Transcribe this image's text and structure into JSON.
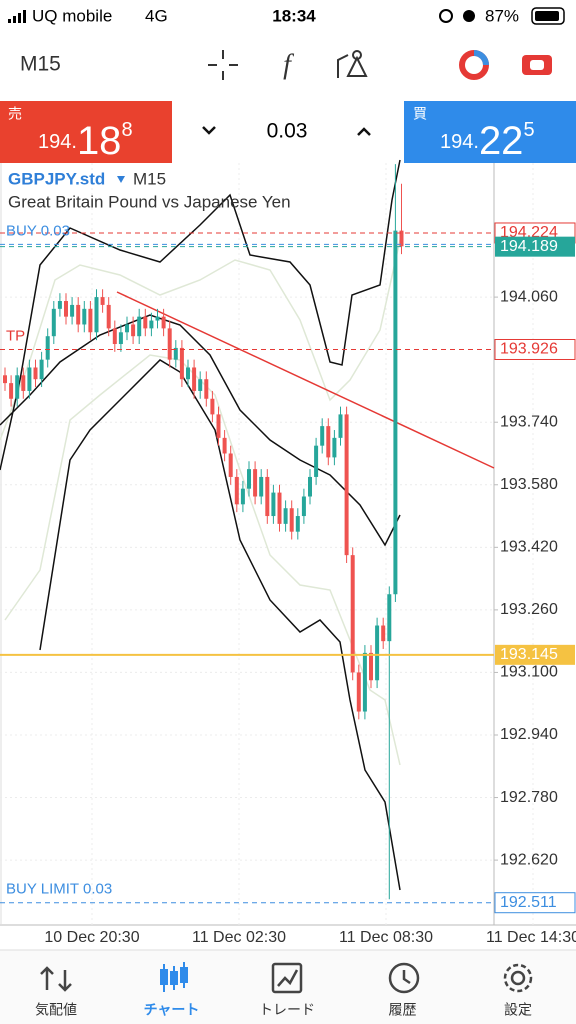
{
  "status": {
    "carrier": "UQ mobile",
    "network": "4G",
    "time": "18:34",
    "battery": "87%"
  },
  "toolbar": {
    "timeframe": "M15"
  },
  "trade": {
    "sell": {
      "label": "売",
      "prefix": "194.",
      "big": "18",
      "sup": "8"
    },
    "volume": "0.03",
    "buy": {
      "label": "買",
      "prefix": "194.",
      "big": "22",
      "sup": "5"
    }
  },
  "chart": {
    "symbol": "GBPJPY.std",
    "timeframe": "M15",
    "description": "Great Britain Pound vs Japanese Yen",
    "ylim": [
      192.454,
      194.403
    ],
    "yticks": [
      {
        "value": 194.06,
        "label": "194.060"
      },
      {
        "value": 193.74,
        "label": "193.740"
      },
      {
        "value": 193.58,
        "label": "193.580"
      },
      {
        "value": 193.42,
        "label": "193.420"
      },
      {
        "value": 193.26,
        "label": "193.260"
      },
      {
        "value": 193.1,
        "label": "193.100"
      },
      {
        "value": 192.94,
        "label": "192.940"
      },
      {
        "value": 192.78,
        "label": "192.780"
      },
      {
        "value": 192.62,
        "label": "192.620"
      }
    ],
    "xlabels": [
      "10 Dec 20:30",
      "11 Dec 02:30",
      "11 Dec 08:30",
      "11 Dec 14:30"
    ],
    "up_color": "#26a69a",
    "down_color": "#ef5350",
    "candles": {
      "open": [
        193.86,
        193.84,
        193.8,
        193.86,
        193.82,
        193.88,
        193.85,
        193.9,
        193.96,
        194.03,
        194.05,
        194.01,
        194.04,
        193.99,
        194.03,
        193.97,
        194.06,
        194.04,
        193.98,
        193.94,
        193.97,
        193.99,
        193.96,
        194.01,
        193.98,
        194.0,
        194.01,
        193.98,
        193.9,
        193.93,
        193.85,
        193.88,
        193.82,
        193.85,
        193.8,
        193.76,
        193.7,
        193.66,
        193.6,
        193.53,
        193.57,
        193.62,
        193.55,
        193.6,
        193.5,
        193.56,
        193.48,
        193.52,
        193.46,
        193.5,
        193.55,
        193.6,
        193.68,
        193.73,
        193.65,
        193.7,
        193.76,
        193.4,
        193.1,
        193.0,
        193.15,
        193.08,
        193.22,
        193.18,
        193.3,
        194.23
      ],
      "high": [
        193.88,
        193.86,
        193.88,
        193.88,
        193.9,
        193.9,
        193.92,
        193.98,
        194.05,
        194.07,
        194.07,
        194.06,
        194.06,
        194.05,
        194.05,
        194.08,
        194.08,
        194.06,
        194.0,
        193.99,
        194.01,
        194.01,
        194.03,
        194.03,
        194.02,
        194.03,
        194.03,
        194.0,
        193.95,
        193.95,
        193.9,
        193.9,
        193.87,
        193.87,
        193.82,
        193.78,
        193.72,
        193.68,
        193.62,
        193.59,
        193.64,
        193.64,
        193.62,
        193.62,
        193.58,
        193.58,
        193.54,
        193.54,
        193.52,
        193.57,
        193.62,
        193.7,
        193.75,
        193.75,
        193.72,
        193.78,
        193.78,
        193.42,
        193.12,
        193.17,
        193.17,
        193.24,
        193.24,
        193.32,
        194.4,
        194.35
      ],
      "low": [
        193.82,
        193.78,
        193.78,
        193.8,
        193.8,
        193.83,
        193.83,
        193.88,
        193.94,
        194.01,
        193.99,
        193.99,
        193.97,
        193.97,
        193.95,
        193.95,
        194.02,
        193.96,
        193.92,
        193.92,
        193.95,
        193.94,
        193.94,
        193.96,
        193.96,
        193.98,
        193.96,
        193.88,
        193.88,
        193.83,
        193.83,
        193.8,
        193.8,
        193.78,
        193.74,
        193.68,
        193.64,
        193.58,
        193.51,
        193.51,
        193.55,
        193.53,
        193.53,
        193.48,
        193.48,
        193.46,
        193.46,
        193.44,
        193.44,
        193.48,
        193.53,
        193.58,
        193.66,
        193.63,
        193.63,
        193.68,
        193.38,
        193.08,
        192.98,
        192.98,
        193.06,
        193.06,
        193.16,
        192.52,
        193.28,
        194.17
      ],
      "close": [
        193.84,
        193.8,
        193.86,
        193.82,
        193.88,
        193.85,
        193.9,
        193.96,
        194.03,
        194.05,
        194.01,
        194.04,
        193.99,
        194.03,
        193.97,
        194.06,
        194.04,
        193.98,
        193.94,
        193.97,
        193.99,
        193.96,
        194.01,
        193.98,
        194.0,
        194.01,
        193.98,
        193.9,
        193.93,
        193.85,
        193.88,
        193.82,
        193.85,
        193.8,
        193.76,
        193.7,
        193.66,
        193.6,
        193.53,
        193.57,
        193.62,
        193.55,
        193.6,
        193.5,
        193.56,
        193.48,
        193.52,
        193.46,
        193.5,
        193.55,
        193.6,
        193.68,
        193.73,
        193.65,
        193.7,
        193.76,
        193.4,
        193.1,
        193.0,
        193.15,
        193.08,
        193.22,
        193.18,
        193.3,
        194.23,
        194.19
      ]
    },
    "levels": [
      {
        "price": 194.224,
        "color": "#e53935",
        "style": "dashed",
        "tag": "outline"
      },
      {
        "label": "BUY 0.03",
        "price": 194.195,
        "color": "#3d8ee0",
        "style": "dashed"
      },
      {
        "price": 194.189,
        "color": "#26a69a",
        "style": "dashed",
        "tag": "filled"
      },
      {
        "label": "TP",
        "price": 193.926,
        "color": "#e53935",
        "style": "dashed",
        "tag": "outline"
      },
      {
        "price": 193.145,
        "color": "#f5c242",
        "style": "solid",
        "tag": "filled"
      },
      {
        "label": "BUY LIMIT 0.03",
        "price": 192.511,
        "color": "#3d8ee0",
        "style": "dashed",
        "tag": "outline"
      }
    ]
  },
  "nav": [
    {
      "label": "気配値"
    },
    {
      "label": "チャート",
      "active": true
    },
    {
      "label": "トレード"
    },
    {
      "label": "履歴"
    },
    {
      "label": "設定"
    }
  ]
}
